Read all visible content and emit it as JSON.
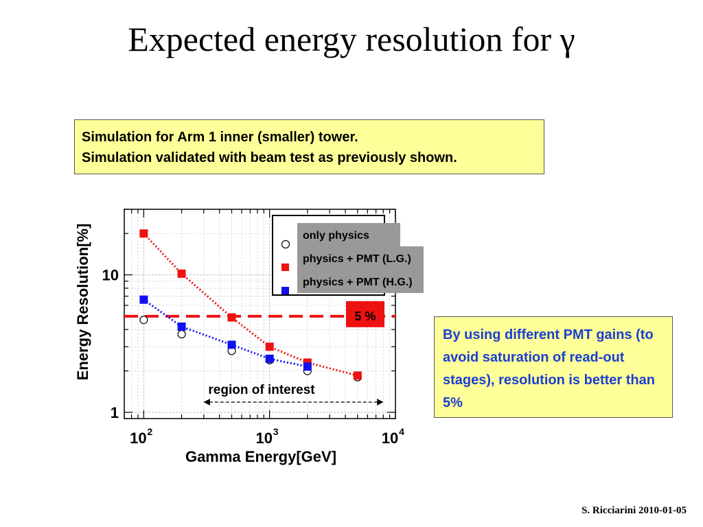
{
  "slide": {
    "title": "Expected energy resolution for γ",
    "info_lines": [
      "Simulation for Arm 1 inner (smaller) tower.",
      "Simulation validated with beam test as previously shown."
    ],
    "note_text": "By using different PMT gains (to avoid saturation of read-out stages), resolution is better than 5%",
    "footer": "S. Ricciarini 2010-01-05"
  },
  "chart_data": {
    "type": "scatter",
    "xlabel": "Gamma Energy[GeV]",
    "ylabel": "Energy Resolution[%]",
    "x_scale": "log",
    "y_scale": "log",
    "xlim": [
      70,
      10000
    ],
    "ylim": [
      0.9,
      30
    ],
    "grid": true,
    "x_ticks": [
      {
        "value": 100,
        "base": "10",
        "exp": "2"
      },
      {
        "value": 1000,
        "base": "10",
        "exp": "3"
      },
      {
        "value": 10000,
        "base": "10",
        "exp": "4"
      }
    ],
    "y_ticks": [
      {
        "value": 1,
        "label": "1"
      },
      {
        "value": 10,
        "label": "10"
      }
    ],
    "series": [
      {
        "name": "only physics",
        "marker": "open-circle",
        "color": "#000000",
        "x": [
          100,
          200,
          500,
          1000,
          2000,
          5000
        ],
        "y": [
          4.7,
          3.7,
          2.8,
          2.4,
          2.0,
          1.8
        ]
      },
      {
        "name": "physics + PMT (L.G.)",
        "marker": "square",
        "color": "#ee1111",
        "x": [
          100,
          200,
          500,
          1000,
          2000,
          5000
        ],
        "y": [
          20,
          10.2,
          4.9,
          3.0,
          2.3,
          1.85
        ]
      },
      {
        "name": "physics + PMT (H.G.)",
        "marker": "square",
        "color": "#1111ee",
        "x": [
          100,
          200,
          500,
          1000,
          2000
        ],
        "y": [
          6.6,
          4.2,
          3.1,
          2.45,
          2.15
        ]
      }
    ],
    "reference_line": {
      "y": 5,
      "label": "5 %",
      "color": "#ee1111"
    },
    "annotation": {
      "text": "region of interest",
      "x_from": 300,
      "x_to": 8000
    },
    "legend_position": "top-right"
  }
}
